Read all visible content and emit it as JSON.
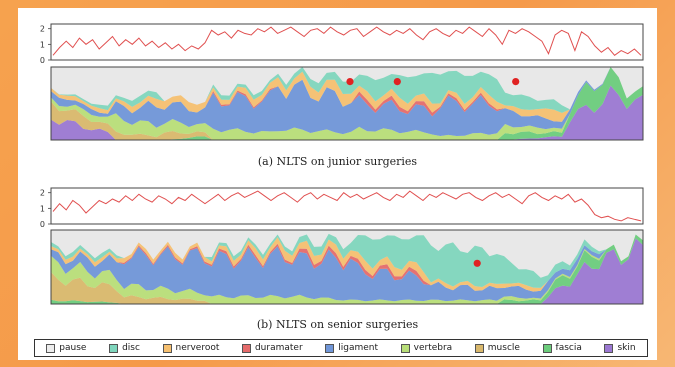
{
  "captions": {
    "a": "(a) NLTS on junior surgeries",
    "b": "(b) NLTS on senior surgeries"
  },
  "legend": [
    {
      "label": "pause",
      "color": "#ececec"
    },
    {
      "label": "disc",
      "color": "#7fd6bd"
    },
    {
      "label": "nerveroot",
      "color": "#f6c070"
    },
    {
      "label": "duramater",
      "color": "#e56b6b"
    },
    {
      "label": "ligament",
      "color": "#7096d8"
    },
    {
      "label": "vertebra",
      "color": "#b8de78"
    },
    {
      "label": "muscle",
      "color": "#d9b86c"
    },
    {
      "label": "fascia",
      "color": "#6ccc7c"
    },
    {
      "label": "skin",
      "color": "#9b78d2"
    }
  ],
  "chart_data": [
    {
      "type": "line",
      "y_ticks": [
        "0",
        "1",
        "2"
      ],
      "ylim": [
        0,
        2.3
      ],
      "values": [
        0.3,
        0.8,
        1.2,
        0.8,
        1.4,
        1.0,
        1.3,
        0.7,
        1.1,
        1.5,
        0.9,
        1.3,
        1.0,
        1.4,
        0.9,
        1.2,
        0.8,
        1.1,
        0.7,
        1.0,
        0.6,
        0.9,
        0.7,
        1.1,
        1.9,
        1.6,
        1.8,
        1.4,
        1.9,
        1.7,
        1.6,
        2.0,
        1.8,
        2.1,
        1.7,
        1.9,
        2.1,
        1.8,
        1.5,
        1.9,
        2.0,
        1.7,
        2.1,
        1.8,
        1.6,
        1.9,
        2.0,
        1.5,
        1.8,
        2.1,
        1.8,
        1.6,
        1.9,
        1.7,
        2.0,
        1.6,
        1.3,
        1.8,
        2.0,
        1.7,
        1.5,
        1.9,
        1.7,
        2.1,
        1.8,
        1.5,
        2.0,
        1.6,
        1.0,
        1.9,
        1.7,
        2.0,
        1.8,
        1.5,
        1.2,
        0.4,
        1.6,
        1.9,
        1.7,
        0.6,
        1.8,
        1.5,
        0.9,
        0.5,
        0.8,
        0.3,
        0.6,
        0.4,
        0.7,
        0.3
      ]
    },
    {
      "type": "area",
      "series_order": [
        "pause",
        "disc",
        "nerveroot",
        "duramater",
        "ligament",
        "vertebra",
        "muscle",
        "fascia",
        "skin"
      ],
      "segments": [
        {
          "n": 8,
          "skin": [
            0.3,
            0.1
          ],
          "muscle": [
            0.2,
            0.1
          ],
          "vertebra": [
            0.05,
            0.1
          ],
          "ligament": [
            0.1,
            0.05
          ],
          "nerveroot": [
            0.05,
            0.05
          ],
          "disc": [
            0,
            0.05
          ]
        },
        {
          "n": 6,
          "muscle": [
            0.1,
            0.05
          ],
          "vertebra": [
            0.2,
            0.15
          ],
          "ligament": [
            0.15,
            0.25
          ],
          "nerveroot": [
            0.05,
            0.1
          ],
          "disc": [
            0.05,
            0.1
          ]
        },
        {
          "n": 6,
          "vertebra": [
            0.15,
            0.1
          ],
          "ligament": [
            0.25,
            0.2
          ],
          "nerveroot": [
            0.1,
            0.1
          ],
          "muscle": [
            0.1,
            0.05
          ],
          "fascia": [
            0,
            0.05
          ]
        },
        {
          "n": 8,
          "vertebra": [
            0.15,
            0.1
          ],
          "ligament": [
            0.4,
            0.45
          ],
          "nerveroot": [
            0.05,
            0.1
          ],
          "duramater": [
            0.02,
            0.02
          ],
          "disc": [
            0.05,
            0.05
          ]
        },
        {
          "n": 10,
          "vertebra": [
            0.15,
            0.1
          ],
          "ligament": [
            0.6,
            0.45
          ],
          "nerveroot": [
            0.1,
            0.15
          ],
          "disc": [
            0.05,
            0.15
          ]
        },
        {
          "n": 10,
          "vertebra": [
            0.15,
            0.1
          ],
          "ligament": [
            0.35,
            0.3
          ],
          "nerveroot": [
            0.1,
            0.1
          ],
          "duramater": [
            0.05,
            0.05
          ],
          "disc": [
            0.2,
            0.35
          ]
        },
        {
          "n": 8,
          "vertebra": [
            0.05,
            0.1
          ],
          "ligament": [
            0.45,
            0.4
          ],
          "nerveroot": [
            0.05,
            0.1
          ],
          "duramater": [
            0.03,
            0.03
          ],
          "disc": [
            0.35,
            0.25
          ]
        },
        {
          "n": 8,
          "vertebra": [
            0.1,
            0.05
          ],
          "ligament": [
            0.2,
            0.1
          ],
          "nerveroot": [
            0.05,
            0.15
          ],
          "disc": [
            0.2,
            0.1
          ],
          "fascia": [
            0.1,
            0.05
          ],
          "skin": [
            0,
            0.05
          ]
        },
        {
          "n": 6,
          "fascia": [
            0.15,
            0.4
          ],
          "skin": [
            0.3,
            0.6
          ],
          "ligament": [
            0.05,
            0
          ]
        },
        {
          "n": 4,
          "skin": [
            0.6,
            0.5
          ],
          "fascia": [
            0.2,
            0.1
          ]
        }
      ],
      "markers": [
        {
          "pos": 0.505,
          "value": 0.8
        },
        {
          "pos": 0.585,
          "value": 0.8
        },
        {
          "pos": 0.785,
          "value": 0.8
        }
      ]
    },
    {
      "type": "line",
      "y_ticks": [
        "0",
        "1",
        "2"
      ],
      "ylim": [
        0,
        2.3
      ],
      "values": [
        0.8,
        1.3,
        0.9,
        1.5,
        1.2,
        0.7,
        1.1,
        1.5,
        1.3,
        1.6,
        1.4,
        1.8,
        1.5,
        1.9,
        1.6,
        1.4,
        1.8,
        1.6,
        1.3,
        1.7,
        1.5,
        1.9,
        1.6,
        1.3,
        1.6,
        1.9,
        1.5,
        1.8,
        2.0,
        1.7,
        1.9,
        2.1,
        1.8,
        1.5,
        1.8,
        2.0,
        1.7,
        1.4,
        1.8,
        2.0,
        1.6,
        1.9,
        1.7,
        1.5,
        2.0,
        1.7,
        1.9,
        1.6,
        1.8,
        2.0,
        1.7,
        1.5,
        1.9,
        1.7,
        2.1,
        1.8,
        1.5,
        1.9,
        1.7,
        2.0,
        1.8,
        1.6,
        1.9,
        2.0,
        1.7,
        1.5,
        1.8,
        2.0,
        1.7,
        1.9,
        1.6,
        1.3,
        1.8,
        2.0,
        1.7,
        1.5,
        1.8,
        1.6,
        1.9,
        1.4,
        1.6,
        1.2,
        0.6,
        0.4,
        0.5,
        0.3,
        0.2,
        0.4,
        0.3,
        0.2
      ]
    },
    {
      "type": "area",
      "series_order": [
        "pause",
        "disc",
        "nerveroot",
        "duramater",
        "ligament",
        "vertebra",
        "muscle",
        "fascia",
        "skin"
      ],
      "segments": [
        {
          "n": 10,
          "muscle": [
            0.3,
            0.2
          ],
          "vertebra": [
            0.2,
            0.15
          ],
          "ligament": [
            0.1,
            0.2
          ],
          "nerveroot": [
            0.05,
            0.05
          ],
          "disc": [
            0.05,
            0.05
          ],
          "fascia": [
            0.05,
            0.02
          ]
        },
        {
          "n": 12,
          "muscle": [
            0.1,
            0.05
          ],
          "vertebra": [
            0.15,
            0.1
          ],
          "ligament": [
            0.4,
            0.5
          ],
          "nerveroot": [
            0.05,
            0.05
          ],
          "duramater": [
            0.02,
            0.02
          ]
        },
        {
          "n": 12,
          "vertebra": [
            0.1,
            0.1
          ],
          "ligament": [
            0.5,
            0.55
          ],
          "nerveroot": [
            0.05,
            0.1
          ],
          "duramater": [
            0.03,
            0.03
          ],
          "disc": [
            0.05,
            0.05
          ]
        },
        {
          "n": 8,
          "vertebra": [
            0.1,
            0.05
          ],
          "ligament": [
            0.5,
            0.55
          ],
          "nerveroot": [
            0.1,
            0.1
          ],
          "duramater": [
            0.05,
            0.05
          ],
          "disc": [
            0.1,
            0.1
          ]
        },
        {
          "n": 10,
          "vertebra": [
            0.05,
            0.05
          ],
          "ligament": [
            0.4,
            0.3
          ],
          "nerveroot": [
            0.1,
            0.1
          ],
          "duramater": [
            0.05,
            0.05
          ],
          "disc": [
            0.3,
            0.4
          ]
        },
        {
          "n": 10,
          "vertebra": [
            0.05,
            0.05
          ],
          "ligament": [
            0.2,
            0.15
          ],
          "nerveroot": [
            0.05,
            0.05
          ],
          "disc": [
            0.5,
            0.45
          ]
        },
        {
          "n": 6,
          "vertebra": [
            0.05,
            0.02
          ],
          "ligament": [
            0.15,
            0.1
          ],
          "nerveroot": [
            0.05,
            0.05
          ],
          "disc": [
            0.3,
            0.15
          ],
          "fascia": [
            0.05,
            0.05
          ]
        },
        {
          "n": 8,
          "vertebra": [
            0.02,
            0.02
          ],
          "ligament": [
            0.1,
            0.05
          ],
          "skin": [
            0.1,
            0.6
          ],
          "fascia": [
            0.1,
            0.15
          ],
          "disc": [
            0.1,
            0.05
          ]
        },
        {
          "n": 6,
          "skin": [
            0.6,
            0.75
          ],
          "fascia": [
            0.05,
            0.05
          ]
        }
      ],
      "markers": [
        {
          "pos": 0.72,
          "value": 0.55
        }
      ]
    }
  ]
}
